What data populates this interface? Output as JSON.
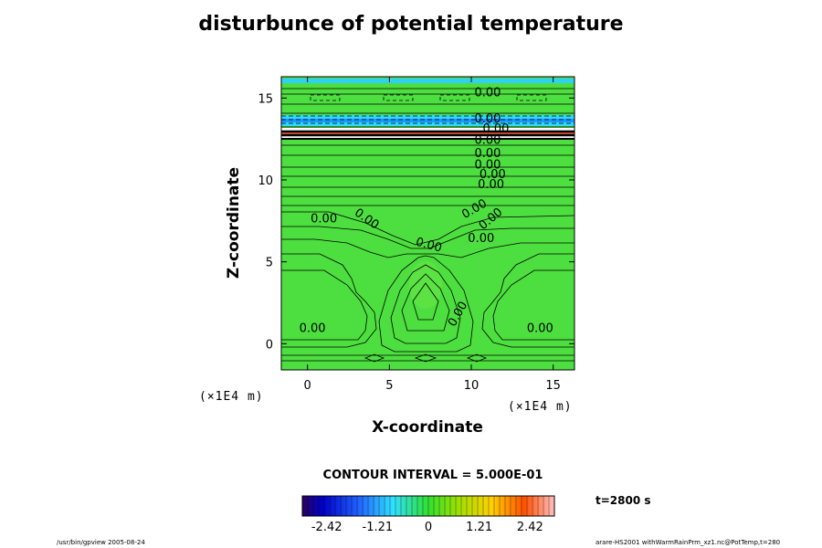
{
  "chart_data": {
    "type": "contour",
    "title": "disturbunce of potential temperature",
    "xlabel": "X-coordinate",
    "ylabel": "Z-coordinate",
    "x_unit": "(×1E4 m)",
    "z_unit": "(×1E4 m)",
    "xlim": [
      -1.6,
      16.3
    ],
    "ylim": [
      -1.6,
      16.3
    ],
    "x_ticks": [
      0,
      5,
      10,
      15
    ],
    "y_ticks": [
      0,
      5,
      10,
      15
    ],
    "contour_interval_text": "CONTOUR INTERVAL = 5.000E-01",
    "time_text": "t=2800 s",
    "colorbar_ticks": [
      "-2.42",
      "-1.21",
      "0",
      "1.21",
      "2.42"
    ],
    "colorbar_range": [
      -3.0,
      3.0
    ],
    "contour_labels": [
      {
        "x": 11.0,
        "z": 15.3,
        "text": "0.00",
        "angle": 0
      },
      {
        "x": 11.0,
        "z": 13.7,
        "text": "0.00",
        "angle": 0
      },
      {
        "x": 11.5,
        "z": 13.1,
        "text": "0.00",
        "angle": 0
      },
      {
        "x": 11.0,
        "z": 12.4,
        "text": "0.00",
        "angle": 0
      },
      {
        "x": 11.0,
        "z": 11.6,
        "text": "0.00",
        "angle": 0
      },
      {
        "x": 11.0,
        "z": 10.9,
        "text": "0.00",
        "angle": 0
      },
      {
        "x": 11.3,
        "z": 10.3,
        "text": "0.00",
        "angle": 0
      },
      {
        "x": 11.2,
        "z": 9.7,
        "text": "0.00",
        "angle": 0
      },
      {
        "x": 1.0,
        "z": 7.6,
        "text": "0.00",
        "angle": 0
      },
      {
        "x": 3.6,
        "z": 7.6,
        "text": "0.00",
        "angle": 35
      },
      {
        "x": 10.2,
        "z": 8.2,
        "text": "0.00",
        "angle": -30
      },
      {
        "x": 11.2,
        "z": 7.6,
        "text": "0.00",
        "angle": -40
      },
      {
        "x": 7.4,
        "z": 6.0,
        "text": "0.00",
        "angle": 15
      },
      {
        "x": 10.6,
        "z": 6.4,
        "text": "0.00",
        "angle": 0
      },
      {
        "x": 9.2,
        "z": 1.8,
        "text": "0.00",
        "angle": -60
      },
      {
        "x": 0.3,
        "z": 0.9,
        "text": "0.00",
        "angle": 0
      },
      {
        "x": 14.2,
        "z": 0.9,
        "text": "0.00",
        "angle": 0
      }
    ]
  },
  "footer": {
    "left": "/usr/bin/gpview 2005-08-24",
    "right": "arare-HS2001 withWarmRainPrm_xz1.nc@PotTemp,t=280"
  }
}
